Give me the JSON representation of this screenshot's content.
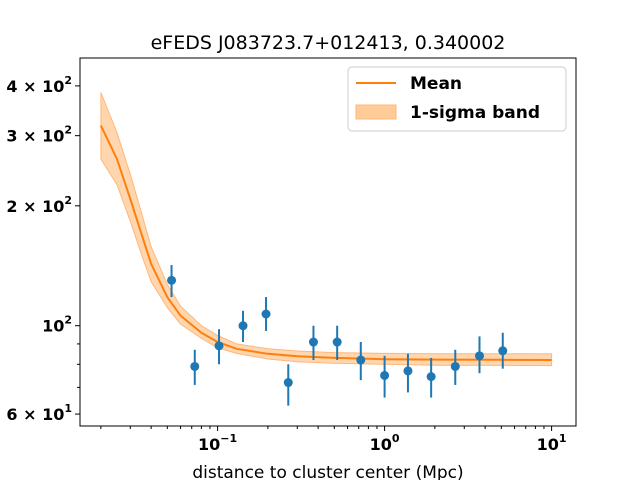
{
  "chart_data": {
    "type": "line",
    "title": "eFEDS J083723.7+012413, 0.340002",
    "xlabel": "distance to cluster center (Mpc)",
    "ylabel": "",
    "xscale": "log",
    "yscale": "log",
    "xlim": [
      0.015,
      14
    ],
    "ylim": [
      56,
      470
    ],
    "x_ticks": [
      {
        "value": 0.1,
        "label": "10",
        "exp": "−1"
      },
      {
        "value": 1,
        "label": "10",
        "exp": "0"
      },
      {
        "value": 10,
        "label": "10",
        "exp": "1"
      }
    ],
    "y_ticks": [
      {
        "value": 60,
        "label": "6 × 10",
        "exp": "1"
      },
      {
        "value": 100,
        "label": "10",
        "exp": "2"
      },
      {
        "value": 200,
        "label": "2 × 10",
        "exp": "2"
      },
      {
        "value": 300,
        "label": "3 × 10",
        "exp": "2"
      },
      {
        "value": 400,
        "label": "4 × 10",
        "exp": "2"
      }
    ],
    "legend": {
      "placement": "top-right",
      "entries": [
        "Mean",
        "1-sigma band"
      ]
    },
    "colors": {
      "mean": "#ff7f0e",
      "band": "#ffcc99",
      "points": "#1f77b4"
    },
    "mean": {
      "name": "Mean",
      "x": [
        0.02,
        0.025,
        0.03,
        0.035,
        0.04,
        0.05,
        0.06,
        0.08,
        0.1,
        0.13,
        0.2,
        0.3,
        0.5,
        1,
        2,
        5,
        10
      ],
      "y": [
        318,
        262,
        208,
        170,
        143,
        118,
        106,
        96,
        91,
        87.5,
        85,
        83.8,
        83,
        82.4,
        82.2,
        82.1,
        82
      ]
    },
    "band": {
      "name": "1-sigma band",
      "x": [
        0.02,
        0.025,
        0.03,
        0.035,
        0.04,
        0.05,
        0.06,
        0.08,
        0.1,
        0.13,
        0.2,
        0.3,
        0.5,
        1,
        2,
        5,
        10
      ],
      "upper": [
        385,
        305,
        240,
        192,
        158,
        127,
        112,
        100,
        94.5,
        90,
        87.5,
        86.4,
        85.6,
        85.2,
        85,
        85,
        85
      ],
      "lower": [
        262,
        226,
        183,
        151,
        129,
        111,
        101,
        93,
        88,
        85.2,
        82.5,
        81.2,
        80.5,
        80,
        79.6,
        79.5,
        79.4
      ]
    },
    "points": {
      "x": [
        0.053,
        0.073,
        0.102,
        0.142,
        0.195,
        0.265,
        0.375,
        0.52,
        0.72,
        1.0,
        1.38,
        1.9,
        2.65,
        3.7,
        5.1
      ],
      "y": [
        130,
        79,
        89,
        100,
        107,
        72,
        91,
        91,
        82,
        75,
        77,
        74.5,
        79,
        84,
        86.5
      ],
      "yerr_low": [
        118,
        71,
        80,
        91,
        97,
        63,
        82,
        82,
        73,
        66,
        68,
        66,
        71,
        76,
        78
      ],
      "yerr_high": [
        142,
        87,
        98,
        109,
        118,
        80,
        100,
        100,
        91,
        84,
        85,
        83,
        87,
        94,
        96
      ]
    }
  }
}
